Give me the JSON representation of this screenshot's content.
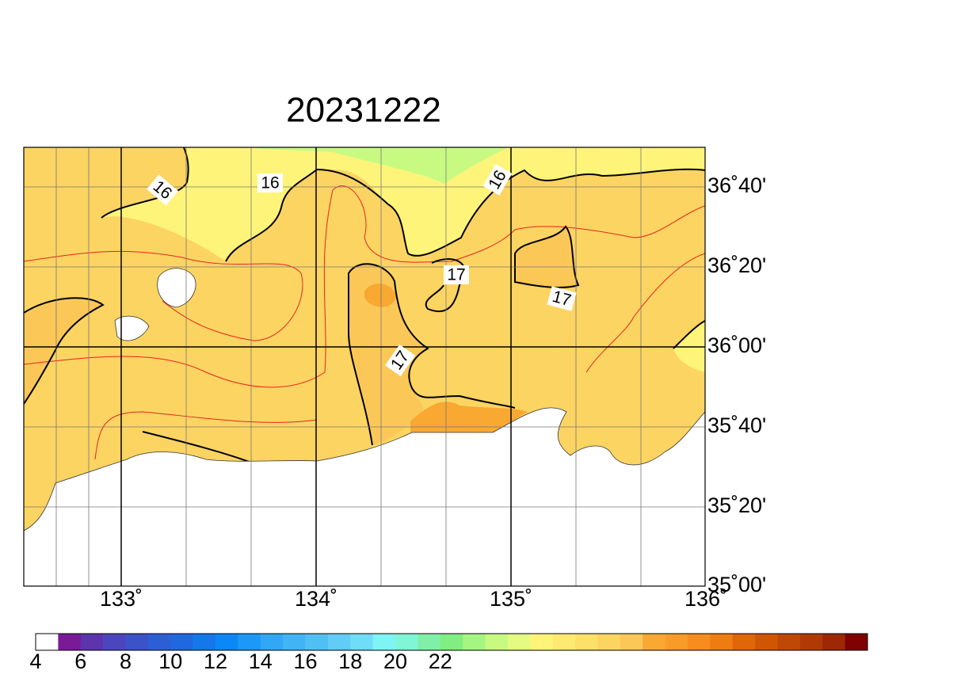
{
  "title": "20231222",
  "longitude_labels": [
    "133˚",
    "134˚",
    "135˚",
    "136˚"
  ],
  "latitude_labels": [
    "36˚40'",
    "36˚20'",
    "36˚00'",
    "35˚40'",
    "35˚20'",
    "35˚00'"
  ],
  "contour_labels": [
    "16",
    "16",
    "16",
    "17",
    "17",
    "17"
  ],
  "colorbar": {
    "labels": [
      4,
      6,
      8,
      10,
      12,
      14,
      16,
      18,
      20,
      22
    ],
    "colors": [
      "#ffffff",
      "#7a1a96",
      "#5c34ac",
      "#4b45be",
      "#3c52c8",
      "#2c5fd6",
      "#2068e0",
      "#1478ec",
      "#0a88f8",
      "#1c98f8",
      "#30a8f4",
      "#40b4f4",
      "#50c0f4",
      "#62ccf6",
      "#70dcf8",
      "#80f4f4",
      "#80f6d6",
      "#80f0a8",
      "#80ee80",
      "#a4f680",
      "#c8fa82",
      "#e4fa80",
      "#fff47a",
      "#feea72",
      "#fde06a",
      "#fcd462",
      "#fbc858",
      "#f9a832",
      "#f89c28",
      "#f88c1c",
      "#ef7c10",
      "#e06608",
      "#d05606",
      "#c04806",
      "#b03a06",
      "#9c2806",
      "#800000"
    ]
  }
}
